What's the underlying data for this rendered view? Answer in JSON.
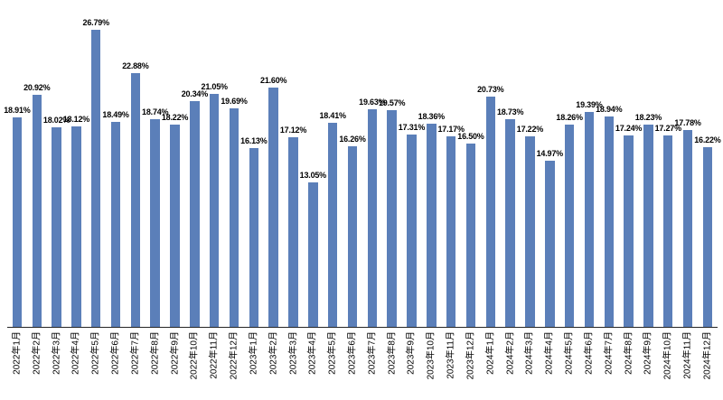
{
  "chart_data": {
    "type": "bar",
    "title": "",
    "xlabel": "",
    "ylabel": "",
    "grid": false,
    "legend": "none",
    "ylim": [
      0,
      27.85
    ],
    "bar_color": "#5B7FB9",
    "axis_line_color": "#262626",
    "label_color": "#000000",
    "categories": [
      "2022年1月",
      "2022年2月",
      "2022年3月",
      "2022年4月",
      "2022年5月",
      "2022年6月",
      "2022年7月",
      "2022年8月",
      "2022年9月",
      "2022年10月",
      "2022年11月",
      "2022年12月",
      "2023年1月",
      "2023年2月",
      "2023年3月",
      "2023年4月",
      "2023年5月",
      "2023年6月",
      "2023年7月",
      "2023年8月",
      "2023年9月",
      "2023年10月",
      "2023年11月",
      "2023年12月",
      "2024年1月",
      "2024年2月",
      "2024年3月",
      "2024年4月",
      "2024年5月",
      "2024年6月",
      "2024年7月",
      "2024年8月",
      "2024年9月",
      "2024年10月",
      "2024年11月",
      "2024年12月"
    ],
    "values": [
      18.91,
      20.92,
      18.02,
      18.12,
      26.79,
      18.49,
      22.88,
      18.74,
      18.22,
      20.34,
      21.05,
      19.69,
      16.13,
      21.6,
      17.12,
      13.05,
      18.41,
      16.26,
      19.63,
      19.57,
      17.31,
      18.36,
      17.17,
      16.5,
      20.73,
      18.73,
      17.22,
      14.97,
      18.26,
      19.39,
      18.94,
      17.24,
      18.23,
      17.27,
      17.78,
      16.22
    ],
    "value_labels": [
      "18.91%",
      "20.92%",
      "18.02%",
      "18.12%",
      "26.79%",
      "18.49%",
      "22.88%",
      "18.74%",
      "18.22%",
      "20.34%",
      "21.05%",
      "19.69%",
      "16.13%",
      "21.60%",
      "17.12%",
      "13.05%",
      "18.41%",
      "16.26%",
      "19.63%",
      "19.57%",
      "17.31%",
      "18.36%",
      "17.17%",
      "16.50%",
      "20.73%",
      "18.73%",
      "17.22%",
      "14.97%",
      "18.26%",
      "19.39%",
      "18.94%",
      "17.24%",
      "18.23%",
      "17.27%",
      "17.78%",
      "16.22%"
    ]
  }
}
